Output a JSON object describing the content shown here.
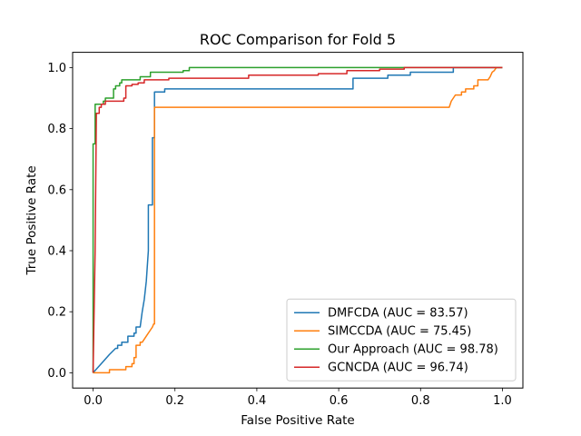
{
  "chart_data": {
    "type": "line",
    "title": "ROC Comparison for Fold 5",
    "xlabel": "False Positive Rate",
    "ylabel": "True Positive Rate",
    "xlim": [
      -0.05,
      1.05
    ],
    "ylim": [
      -0.05,
      1.05
    ],
    "xticks": [
      0.0,
      0.2,
      0.4,
      0.6,
      0.8,
      1.0
    ],
    "yticks": [
      0.0,
      0.2,
      0.4,
      0.6,
      0.8,
      1.0
    ],
    "tick_labels": [
      "0.0",
      "0.2",
      "0.4",
      "0.6",
      "0.8",
      "1.0"
    ],
    "grid": false,
    "legend_position": "lower-right",
    "series": [
      {
        "name": "DMFCDA (AUC = 83.57)",
        "color": "#1f77b4",
        "points": [
          [
            0.0,
            0.0
          ],
          [
            0.02,
            0.03
          ],
          [
            0.04,
            0.06
          ],
          [
            0.055,
            0.08
          ],
          [
            0.06,
            0.08
          ],
          [
            0.06,
            0.09
          ],
          [
            0.07,
            0.09
          ],
          [
            0.07,
            0.1
          ],
          [
            0.085,
            0.1
          ],
          [
            0.085,
            0.12
          ],
          [
            0.1,
            0.12
          ],
          [
            0.1,
            0.13
          ],
          [
            0.105,
            0.13
          ],
          [
            0.105,
            0.15
          ],
          [
            0.115,
            0.15
          ],
          [
            0.12,
            0.2
          ],
          [
            0.125,
            0.24
          ],
          [
            0.13,
            0.3
          ],
          [
            0.135,
            0.4
          ],
          [
            0.135,
            0.55
          ],
          [
            0.145,
            0.55
          ],
          [
            0.145,
            0.77
          ],
          [
            0.15,
            0.77
          ],
          [
            0.15,
            0.92
          ],
          [
            0.175,
            0.92
          ],
          [
            0.175,
            0.93
          ],
          [
            0.635,
            0.93
          ],
          [
            0.635,
            0.965
          ],
          [
            0.72,
            0.965
          ],
          [
            0.72,
            0.975
          ],
          [
            0.775,
            0.975
          ],
          [
            0.775,
            0.985
          ],
          [
            0.88,
            0.985
          ],
          [
            0.88,
            1.0
          ],
          [
            1.0,
            1.0
          ]
        ]
      },
      {
        "name": "SIMCCDA (AUC = 75.45)",
        "color": "#ff7f0e",
        "points": [
          [
            0.0,
            0.0
          ],
          [
            0.04,
            0.0
          ],
          [
            0.04,
            0.01
          ],
          [
            0.08,
            0.01
          ],
          [
            0.08,
            0.02
          ],
          [
            0.095,
            0.02
          ],
          [
            0.095,
            0.03
          ],
          [
            0.1,
            0.03
          ],
          [
            0.1,
            0.05
          ],
          [
            0.105,
            0.05
          ],
          [
            0.105,
            0.09
          ],
          [
            0.115,
            0.09
          ],
          [
            0.115,
            0.1
          ],
          [
            0.12,
            0.1
          ],
          [
            0.125,
            0.11
          ],
          [
            0.13,
            0.12
          ],
          [
            0.135,
            0.13
          ],
          [
            0.14,
            0.14
          ],
          [
            0.145,
            0.15
          ],
          [
            0.148,
            0.16
          ],
          [
            0.15,
            0.16
          ],
          [
            0.15,
            0.87
          ],
          [
            0.87,
            0.87
          ],
          [
            0.875,
            0.89
          ],
          [
            0.88,
            0.9
          ],
          [
            0.885,
            0.91
          ],
          [
            0.9,
            0.91
          ],
          [
            0.9,
            0.92
          ],
          [
            0.91,
            0.92
          ],
          [
            0.91,
            0.93
          ],
          [
            0.93,
            0.93
          ],
          [
            0.93,
            0.94
          ],
          [
            0.94,
            0.94
          ],
          [
            0.94,
            0.96
          ],
          [
            0.965,
            0.96
          ],
          [
            0.97,
            0.97
          ],
          [
            0.975,
            0.985
          ],
          [
            0.98,
            0.99
          ],
          [
            0.985,
            1.0
          ],
          [
            1.0,
            1.0
          ]
        ]
      },
      {
        "name": "Our Approach (AUC = 98.78)",
        "color": "#2ca02c",
        "points": [
          [
            0.0,
            0.0
          ],
          [
            0.0,
            0.75
          ],
          [
            0.005,
            0.75
          ],
          [
            0.005,
            0.88
          ],
          [
            0.025,
            0.88
          ],
          [
            0.025,
            0.89
          ],
          [
            0.03,
            0.89
          ],
          [
            0.03,
            0.9
          ],
          [
            0.05,
            0.9
          ],
          [
            0.05,
            0.93
          ],
          [
            0.055,
            0.93
          ],
          [
            0.055,
            0.94
          ],
          [
            0.065,
            0.94
          ],
          [
            0.065,
            0.95
          ],
          [
            0.07,
            0.95
          ],
          [
            0.07,
            0.96
          ],
          [
            0.115,
            0.96
          ],
          [
            0.115,
            0.97
          ],
          [
            0.14,
            0.97
          ],
          [
            0.14,
            0.985
          ],
          [
            0.22,
            0.985
          ],
          [
            0.22,
            0.99
          ],
          [
            0.235,
            0.99
          ],
          [
            0.235,
            1.0
          ],
          [
            1.0,
            1.0
          ]
        ]
      },
      {
        "name": "GCNCDA (AUC = 96.74)",
        "color": "#d62728",
        "points": [
          [
            0.0,
            0.0
          ],
          [
            0.005,
            0.4
          ],
          [
            0.008,
            0.85
          ],
          [
            0.015,
            0.85
          ],
          [
            0.015,
            0.87
          ],
          [
            0.02,
            0.87
          ],
          [
            0.02,
            0.88
          ],
          [
            0.03,
            0.88
          ],
          [
            0.03,
            0.89
          ],
          [
            0.075,
            0.89
          ],
          [
            0.075,
            0.9
          ],
          [
            0.08,
            0.9
          ],
          [
            0.08,
            0.94
          ],
          [
            0.095,
            0.94
          ],
          [
            0.095,
            0.945
          ],
          [
            0.11,
            0.945
          ],
          [
            0.11,
            0.95
          ],
          [
            0.125,
            0.95
          ],
          [
            0.125,
            0.96
          ],
          [
            0.185,
            0.96
          ],
          [
            0.185,
            0.965
          ],
          [
            0.38,
            0.965
          ],
          [
            0.38,
            0.975
          ],
          [
            0.55,
            0.975
          ],
          [
            0.55,
            0.98
          ],
          [
            0.62,
            0.98
          ],
          [
            0.62,
            0.99
          ],
          [
            0.7,
            0.99
          ],
          [
            0.7,
            0.995
          ],
          [
            0.76,
            0.995
          ],
          [
            0.76,
            1.0
          ],
          [
            1.0,
            1.0
          ]
        ]
      }
    ]
  }
}
